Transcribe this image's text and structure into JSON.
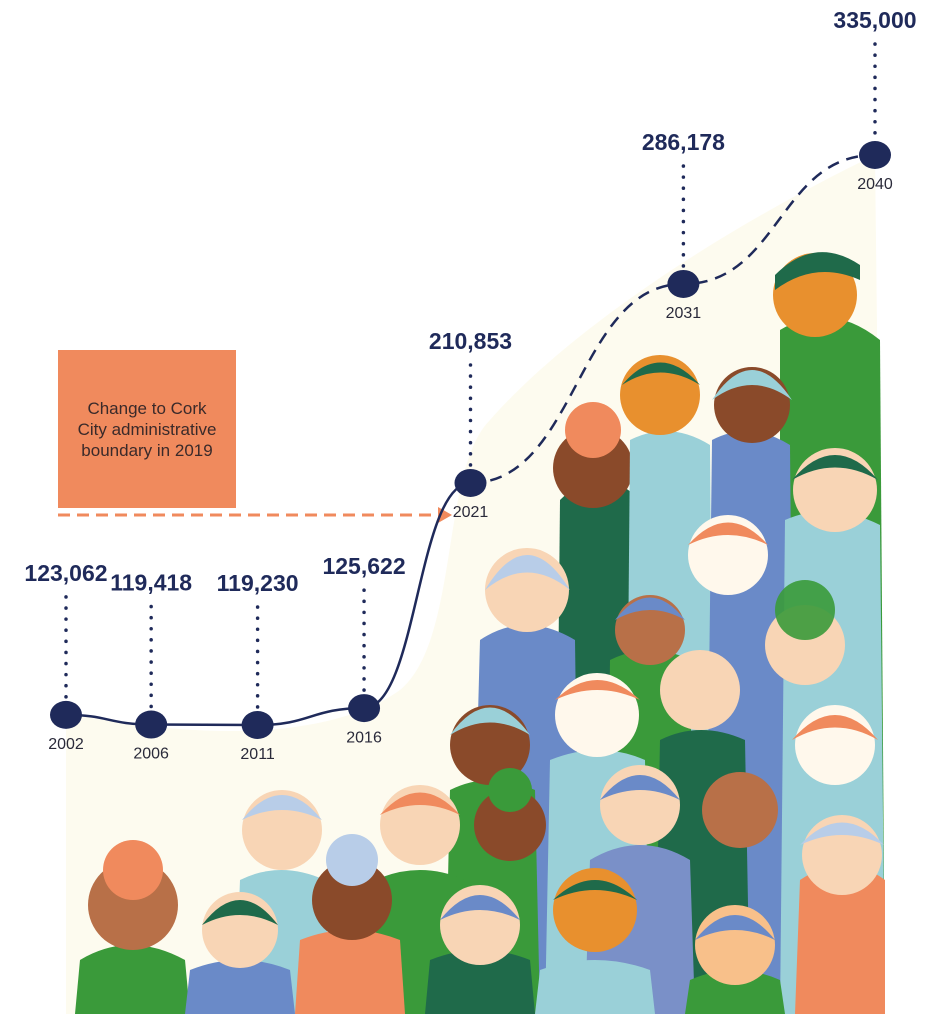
{
  "chart_data": {
    "type": "line",
    "x": [
      2002,
      2006,
      2011,
      2016,
      2021,
      2031,
      2040
    ],
    "values": [
      123062,
      119418,
      119230,
      125622,
      210853,
      286178,
      335000
    ],
    "value_labels": [
      "123,062",
      "119,418",
      "119,230",
      "125,622",
      "210,853",
      "286,178",
      "335,000"
    ],
    "color": "#1f2a5a",
    "dashed_after": 2021,
    "annotation": "Change to Cork City administrative boundary in 2019"
  }
}
